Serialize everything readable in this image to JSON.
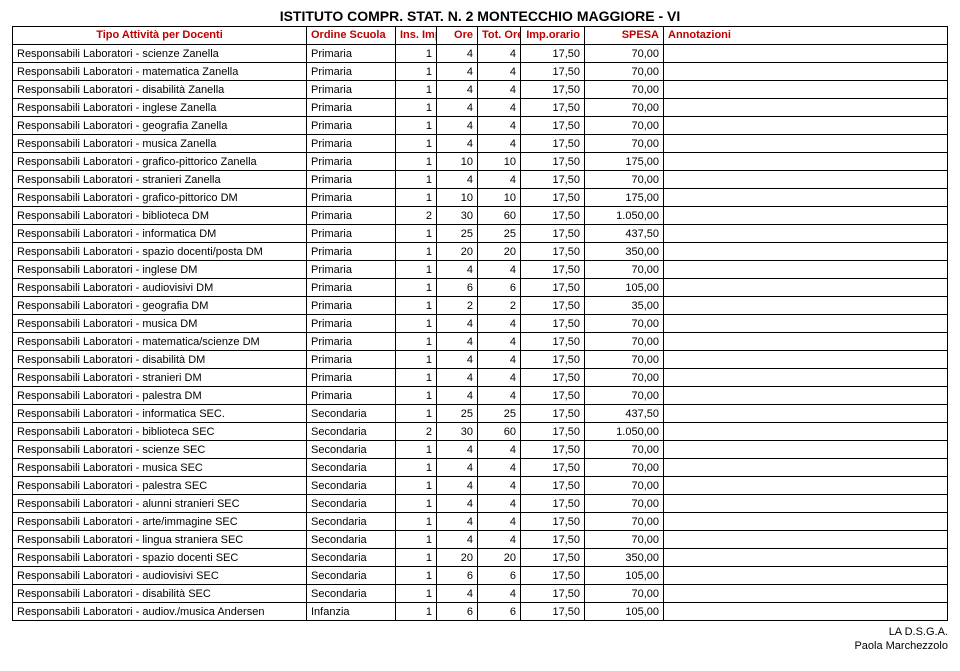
{
  "title": "ISTITUTO COMPR. STAT. N. 2 MONTECCHIO MAGGIORE - VI",
  "colors": {
    "header_text": "#c00000",
    "border": "#000000",
    "background": "#ffffff",
    "body_text": "#000000"
  },
  "typography": {
    "font_family": "Arial, Helvetica, sans-serif",
    "title_fontsize_pt": 14,
    "header_fontsize_pt": 11,
    "cell_fontsize_pt": 11
  },
  "columns": [
    "Tipo Attività per Docenti",
    "Ordine Scuola",
    "Ins.\nImp.",
    "Ore",
    "Tot.\nOre",
    "Imp.orario",
    "SPESA",
    "Annotazioni"
  ],
  "rows": [
    [
      "Responsabili Laboratori - scienze Zanella",
      "Primaria",
      "1",
      "4",
      "4",
      "17,50",
      "70,00",
      ""
    ],
    [
      "Responsabili Laboratori - matematica Zanella",
      "Primaria",
      "1",
      "4",
      "4",
      "17,50",
      "70,00",
      ""
    ],
    [
      "Responsabili Laboratori - disabilità Zanella",
      "Primaria",
      "1",
      "4",
      "4",
      "17,50",
      "70,00",
      ""
    ],
    [
      "Responsabili Laboratori - inglese Zanella",
      "Primaria",
      "1",
      "4",
      "4",
      "17,50",
      "70,00",
      ""
    ],
    [
      "Responsabili Laboratori - geografia Zanella",
      "Primaria",
      "1",
      "4",
      "4",
      "17,50",
      "70,00",
      ""
    ],
    [
      "Responsabili Laboratori - musica Zanella",
      "Primaria",
      "1",
      "4",
      "4",
      "17,50",
      "70,00",
      ""
    ],
    [
      "Responsabili Laboratori - grafico-pittorico Zanella",
      "Primaria",
      "1",
      "10",
      "10",
      "17,50",
      "175,00",
      ""
    ],
    [
      "Responsabili Laboratori - stranieri Zanella",
      "Primaria",
      "1",
      "4",
      "4",
      "17,50",
      "70,00",
      ""
    ],
    [
      "Responsabili Laboratori - grafico-pittorico DM",
      "Primaria",
      "1",
      "10",
      "10",
      "17,50",
      "175,00",
      ""
    ],
    [
      "Responsabili Laboratori - biblioteca DM",
      "Primaria",
      "2",
      "30",
      "60",
      "17,50",
      "1.050,00",
      ""
    ],
    [
      "Responsabili Laboratori - informatica DM",
      "Primaria",
      "1",
      "25",
      "25",
      "17,50",
      "437,50",
      ""
    ],
    [
      "Responsabili Laboratori - spazio docenti/posta DM",
      "Primaria",
      "1",
      "20",
      "20",
      "17,50",
      "350,00",
      ""
    ],
    [
      "Responsabili Laboratori - inglese DM",
      "Primaria",
      "1",
      "4",
      "4",
      "17,50",
      "70,00",
      ""
    ],
    [
      "Responsabili Laboratori - audiovisivi DM",
      "Primaria",
      "1",
      "6",
      "6",
      "17,50",
      "105,00",
      ""
    ],
    [
      "Responsabili Laboratori - geografia DM",
      "Primaria",
      "1",
      "2",
      "2",
      "17,50",
      "35,00",
      ""
    ],
    [
      "Responsabili Laboratori - musica DM",
      "Primaria",
      "1",
      "4",
      "4",
      "17,50",
      "70,00",
      ""
    ],
    [
      "Responsabili Laboratori - matematica/scienze DM",
      "Primaria",
      "1",
      "4",
      "4",
      "17,50",
      "70,00",
      ""
    ],
    [
      "Responsabili Laboratori - disabilità DM",
      "Primaria",
      "1",
      "4",
      "4",
      "17,50",
      "70,00",
      ""
    ],
    [
      "Responsabili Laboratori - stranieri DM",
      "Primaria",
      "1",
      "4",
      "4",
      "17,50",
      "70,00",
      ""
    ],
    [
      "Responsabili Laboratori - palestra DM",
      "Primaria",
      "1",
      "4",
      "4",
      "17,50",
      "70,00",
      ""
    ],
    [
      "Responsabili Laboratori - informatica SEC.",
      "Secondaria",
      "1",
      "25",
      "25",
      "17,50",
      "437,50",
      ""
    ],
    [
      "Responsabili Laboratori - biblioteca SEC",
      "Secondaria",
      "2",
      "30",
      "60",
      "17,50",
      "1.050,00",
      ""
    ],
    [
      "Responsabili Laboratori - scienze SEC",
      "Secondaria",
      "1",
      "4",
      "4",
      "17,50",
      "70,00",
      ""
    ],
    [
      "Responsabili Laboratori - musica SEC",
      "Secondaria",
      "1",
      "4",
      "4",
      "17,50",
      "70,00",
      ""
    ],
    [
      "Responsabili Laboratori - palestra SEC",
      "Secondaria",
      "1",
      "4",
      "4",
      "17,50",
      "70,00",
      ""
    ],
    [
      "Responsabili Laboratori - alunni stranieri SEC",
      "Secondaria",
      "1",
      "4",
      "4",
      "17,50",
      "70,00",
      ""
    ],
    [
      "Responsabili Laboratori - arte/immagine SEC",
      "Secondaria",
      "1",
      "4",
      "4",
      "17,50",
      "70,00",
      ""
    ],
    [
      "Responsabili Laboratori - lingua straniera SEC",
      "Secondaria",
      "1",
      "4",
      "4",
      "17,50",
      "70,00",
      ""
    ],
    [
      "Responsabili Laboratori - spazio docenti SEC",
      "Secondaria",
      "1",
      "20",
      "20",
      "17,50",
      "350,00",
      ""
    ],
    [
      "Responsabili Laboratori - audiovisivi SEC",
      "Secondaria",
      "1",
      "6",
      "6",
      "17,50",
      "105,00",
      ""
    ],
    [
      "Responsabili Laboratori - disabilità SEC",
      "Secondaria",
      "1",
      "4",
      "4",
      "17,50",
      "70,00",
      ""
    ],
    [
      "Responsabili Laboratori - audiov./musica Andersen",
      "Infanzia",
      "1",
      "6",
      "6",
      "17,50",
      "105,00",
      ""
    ]
  ],
  "footer": {
    "line1": "LA D.S.G.A.",
    "line2": "Paola Marchezzolo"
  }
}
